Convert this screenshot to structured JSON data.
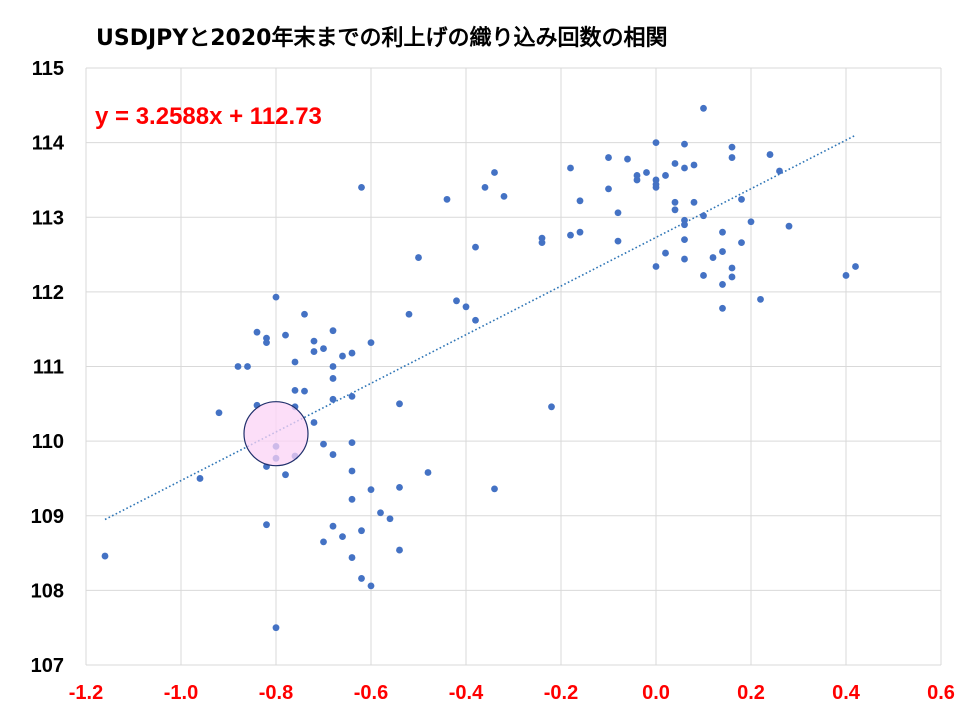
{
  "chart_data": {
    "type": "scatter",
    "title": "USDJPYと2020年末までの利上げの織り込み回数の相関",
    "xlabel": "",
    "ylabel": "",
    "xlim": [
      -1.2,
      0.6
    ],
    "ylim": [
      107,
      115
    ],
    "x_ticks": [
      "-1.2",
      "-1.0",
      "-0.8",
      "-0.6",
      "-0.4",
      "-0.2",
      "0.0",
      "0.2",
      "0.4",
      "0.6"
    ],
    "y_ticks": [
      "107",
      "108",
      "109",
      "110",
      "111",
      "112",
      "113",
      "114",
      "115"
    ],
    "grid": true,
    "trendline": {
      "type": "linear",
      "slope": 3.2588,
      "intercept": 112.73,
      "x_range": [
        -1.16,
        0.42
      ],
      "label": "y = 3.2588x + 112.73"
    },
    "highlight": {
      "x": -0.8,
      "y": 110.1
    },
    "points": [
      {
        "x": -1.16,
        "y": 108.46
      },
      {
        "x": -0.96,
        "y": 109.5
      },
      {
        "x": -0.92,
        "y": 110.38
      },
      {
        "x": -0.88,
        "y": 111.0
      },
      {
        "x": -0.86,
        "y": 111.0
      },
      {
        "x": -0.84,
        "y": 111.46
      },
      {
        "x": -0.84,
        "y": 110.48
      },
      {
        "x": -0.82,
        "y": 111.38
      },
      {
        "x": -0.82,
        "y": 111.32
      },
      {
        "x": -0.82,
        "y": 109.66
      },
      {
        "x": -0.82,
        "y": 108.88
      },
      {
        "x": -0.8,
        "y": 111.93
      },
      {
        "x": -0.8,
        "y": 109.93
      },
      {
        "x": -0.8,
        "y": 109.77
      },
      {
        "x": -0.8,
        "y": 107.5
      },
      {
        "x": -0.78,
        "y": 111.42
      },
      {
        "x": -0.78,
        "y": 109.55
      },
      {
        "x": -0.76,
        "y": 111.06
      },
      {
        "x": -0.76,
        "y": 110.68
      },
      {
        "x": -0.76,
        "y": 110.46
      },
      {
        "x": -0.76,
        "y": 109.8
      },
      {
        "x": -0.74,
        "y": 111.7
      },
      {
        "x": -0.74,
        "y": 110.67
      },
      {
        "x": -0.72,
        "y": 111.34
      },
      {
        "x": -0.72,
        "y": 111.2
      },
      {
        "x": -0.72,
        "y": 110.25
      },
      {
        "x": -0.7,
        "y": 111.24
      },
      {
        "x": -0.7,
        "y": 109.96
      },
      {
        "x": -0.7,
        "y": 108.65
      },
      {
        "x": -0.68,
        "y": 111.48
      },
      {
        "x": -0.68,
        "y": 111.0
      },
      {
        "x": -0.68,
        "y": 110.84
      },
      {
        "x": -0.68,
        "y": 110.56
      },
      {
        "x": -0.68,
        "y": 109.82
      },
      {
        "x": -0.68,
        "y": 108.86
      },
      {
        "x": -0.66,
        "y": 111.14
      },
      {
        "x": -0.66,
        "y": 108.72
      },
      {
        "x": -0.64,
        "y": 111.18
      },
      {
        "x": -0.64,
        "y": 110.6
      },
      {
        "x": -0.64,
        "y": 109.98
      },
      {
        "x": -0.64,
        "y": 109.6
      },
      {
        "x": -0.64,
        "y": 109.22
      },
      {
        "x": -0.64,
        "y": 108.44
      },
      {
        "x": -0.62,
        "y": 113.4
      },
      {
        "x": -0.62,
        "y": 108.8
      },
      {
        "x": -0.62,
        "y": 108.16
      },
      {
        "x": -0.6,
        "y": 111.32
      },
      {
        "x": -0.6,
        "y": 109.35
      },
      {
        "x": -0.6,
        "y": 108.06
      },
      {
        "x": -0.58,
        "y": 109.04
      },
      {
        "x": -0.56,
        "y": 108.96
      },
      {
        "x": -0.54,
        "y": 110.5
      },
      {
        "x": -0.54,
        "y": 109.38
      },
      {
        "x": -0.54,
        "y": 108.54
      },
      {
        "x": -0.52,
        "y": 111.7
      },
      {
        "x": -0.5,
        "y": 112.46
      },
      {
        "x": -0.48,
        "y": 109.58
      },
      {
        "x": -0.44,
        "y": 113.24
      },
      {
        "x": -0.42,
        "y": 111.88
      },
      {
        "x": -0.4,
        "y": 111.8
      },
      {
        "x": -0.38,
        "y": 112.6
      },
      {
        "x": -0.38,
        "y": 111.62
      },
      {
        "x": -0.36,
        "y": 113.4
      },
      {
        "x": -0.34,
        "y": 113.6
      },
      {
        "x": -0.34,
        "y": 109.36
      },
      {
        "x": -0.32,
        "y": 113.28
      },
      {
        "x": -0.24,
        "y": 112.72
      },
      {
        "x": -0.24,
        "y": 112.66
      },
      {
        "x": -0.22,
        "y": 110.46
      },
      {
        "x": -0.18,
        "y": 113.66
      },
      {
        "x": -0.18,
        "y": 112.76
      },
      {
        "x": -0.16,
        "y": 113.22
      },
      {
        "x": -0.16,
        "y": 112.8
      },
      {
        "x": -0.1,
        "y": 113.8
      },
      {
        "x": -0.1,
        "y": 113.38
      },
      {
        "x": -0.08,
        "y": 113.06
      },
      {
        "x": -0.08,
        "y": 112.68
      },
      {
        "x": -0.06,
        "y": 113.78
      },
      {
        "x": -0.04,
        "y": 113.56
      },
      {
        "x": -0.04,
        "y": 113.5
      },
      {
        "x": -0.02,
        "y": 113.6
      },
      {
        "x": 0.0,
        "y": 114.0
      },
      {
        "x": 0.0,
        "y": 113.5
      },
      {
        "x": 0.0,
        "y": 113.44
      },
      {
        "x": 0.0,
        "y": 113.4
      },
      {
        "x": 0.0,
        "y": 112.34
      },
      {
        "x": 0.02,
        "y": 113.56
      },
      {
        "x": 0.02,
        "y": 112.52
      },
      {
        "x": 0.04,
        "y": 113.72
      },
      {
        "x": 0.04,
        "y": 113.2
      },
      {
        "x": 0.04,
        "y": 113.1
      },
      {
        "x": 0.06,
        "y": 113.98
      },
      {
        "x": 0.06,
        "y": 113.66
      },
      {
        "x": 0.06,
        "y": 112.96
      },
      {
        "x": 0.06,
        "y": 112.9
      },
      {
        "x": 0.06,
        "y": 112.7
      },
      {
        "x": 0.06,
        "y": 112.44
      },
      {
        "x": 0.08,
        "y": 113.7
      },
      {
        "x": 0.08,
        "y": 113.2
      },
      {
        "x": 0.1,
        "y": 114.46
      },
      {
        "x": 0.1,
        "y": 113.02
      },
      {
        "x": 0.1,
        "y": 112.22
      },
      {
        "x": 0.12,
        "y": 112.46
      },
      {
        "x": 0.14,
        "y": 112.8
      },
      {
        "x": 0.14,
        "y": 112.54
      },
      {
        "x": 0.14,
        "y": 112.1
      },
      {
        "x": 0.14,
        "y": 111.78
      },
      {
        "x": 0.16,
        "y": 113.94
      },
      {
        "x": 0.16,
        "y": 113.8
      },
      {
        "x": 0.16,
        "y": 112.32
      },
      {
        "x": 0.16,
        "y": 112.2
      },
      {
        "x": 0.18,
        "y": 113.24
      },
      {
        "x": 0.18,
        "y": 112.66
      },
      {
        "x": 0.2,
        "y": 112.94
      },
      {
        "x": 0.22,
        "y": 111.9
      },
      {
        "x": 0.24,
        "y": 113.84
      },
      {
        "x": 0.26,
        "y": 113.62
      },
      {
        "x": 0.28,
        "y": 112.88
      },
      {
        "x": 0.4,
        "y": 112.22
      },
      {
        "x": 0.42,
        "y": 112.34
      }
    ],
    "colors": {
      "point": "#4472c4",
      "trendline": "#2e75b6",
      "equation": "#ff0000",
      "x_tick_labels": "#ff0000",
      "y_tick_labels": "#000000",
      "grid": "#d9d9d9",
      "highlight_fill": "#fbd3f5",
      "highlight_stroke": "#1f2f6b"
    }
  }
}
